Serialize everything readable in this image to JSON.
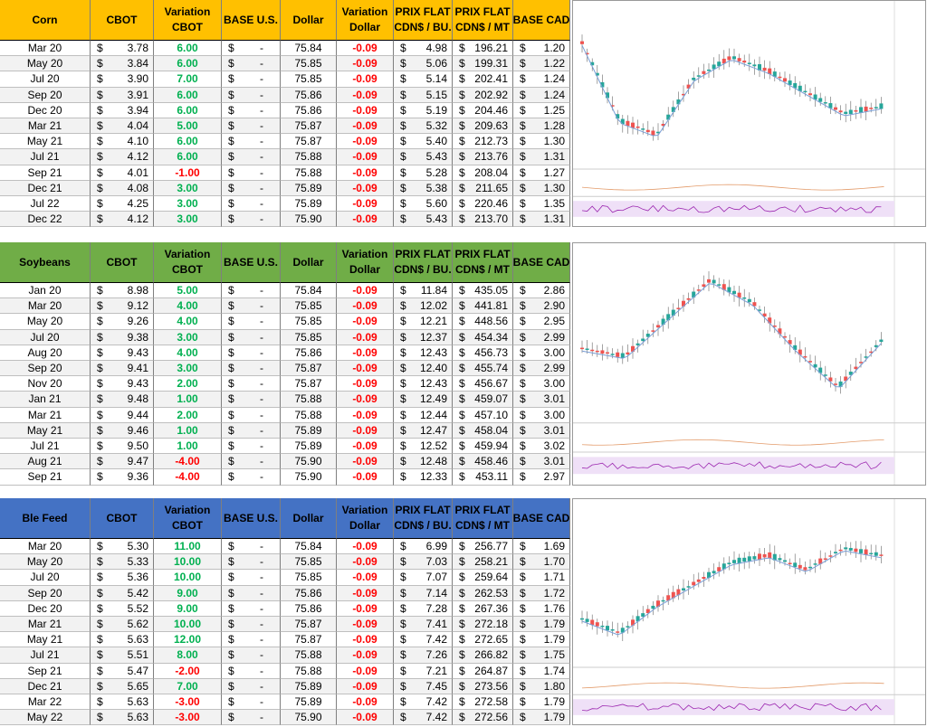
{
  "currency": "$",
  "tables": [
    {
      "header_color": "#ffc000",
      "headers": [
        [
          "Corn"
        ],
        [
          "CBOT"
        ],
        [
          "Variation",
          "CBOT"
        ],
        [
          "BASE U.S."
        ],
        [
          "Dollar"
        ],
        [
          "Variation",
          "Dollar"
        ],
        [
          "PRIX FLAT",
          "CDN$ / BU."
        ],
        [
          "PRIX FLAT",
          "CDN$ / MT"
        ],
        [
          "BASE CAD"
        ]
      ],
      "rows": [
        [
          "Mar 20",
          "3.78",
          "6.00",
          "-",
          "75.84",
          "-0.09",
          "4.98",
          "196.21",
          "1.20"
        ],
        [
          "May 20",
          "3.84",
          "6.00",
          "-",
          "75.85",
          "-0.09",
          "5.06",
          "199.31",
          "1.22"
        ],
        [
          "Jul 20",
          "3.90",
          "7.00",
          "-",
          "75.85",
          "-0.09",
          "5.14",
          "202.41",
          "1.24"
        ],
        [
          "Sep 20",
          "3.91",
          "6.00",
          "-",
          "75.86",
          "-0.09",
          "5.15",
          "202.92",
          "1.24"
        ],
        [
          "Dec 20",
          "3.94",
          "6.00",
          "-",
          "75.86",
          "-0.09",
          "5.19",
          "204.46",
          "1.25"
        ],
        [
          "Mar 21",
          "4.04",
          "5.00",
          "-",
          "75.87",
          "-0.09",
          "5.32",
          "209.63",
          "1.28"
        ],
        [
          "May 21",
          "4.10",
          "6.00",
          "-",
          "75.87",
          "-0.09",
          "5.40",
          "212.73",
          "1.30"
        ],
        [
          "Jul 21",
          "4.12",
          "6.00",
          "-",
          "75.88",
          "-0.09",
          "5.43",
          "213.76",
          "1.31"
        ],
        [
          "Sep 21",
          "4.01",
          "-1.00",
          "-",
          "75.88",
          "-0.09",
          "5.28",
          "208.04",
          "1.27"
        ],
        [
          "Dec 21",
          "4.08",
          "3.00",
          "-",
          "75.89",
          "-0.09",
          "5.38",
          "211.65",
          "1.30"
        ],
        [
          "Jul 22",
          "4.25",
          "3.00",
          "-",
          "75.89",
          "-0.09",
          "5.60",
          "220.46",
          "1.35"
        ],
        [
          "Dec 22",
          "4.12",
          "3.00",
          "-",
          "75.90",
          "-0.09",
          "5.43",
          "213.70",
          "1.31"
        ]
      ]
    },
    {
      "header_color": "#70ad47",
      "headers": [
        [
          "Soybeans"
        ],
        [
          "CBOT"
        ],
        [
          "Variation",
          "CBOT"
        ],
        [
          "BASE U.S."
        ],
        [
          "Dollar"
        ],
        [
          "Variation",
          "Dollar"
        ],
        [
          "PRIX FLAT",
          "CDN$ / BU."
        ],
        [
          "PRIX FLAT",
          "CDN$ / MT"
        ],
        [
          "BASE CAD"
        ]
      ],
      "rows": [
        [
          "Jan 20",
          "8.98",
          "5.00",
          "-",
          "75.84",
          "-0.09",
          "11.84",
          "435.05",
          "2.86"
        ],
        [
          "Mar 20",
          "9.12",
          "4.00",
          "-",
          "75.85",
          "-0.09",
          "12.02",
          "441.81",
          "2.90"
        ],
        [
          "May 20",
          "9.26",
          "4.00",
          "-",
          "75.85",
          "-0.09",
          "12.21",
          "448.56",
          "2.95"
        ],
        [
          "Jul 20",
          "9.38",
          "3.00",
          "-",
          "75.85",
          "-0.09",
          "12.37",
          "454.34",
          "2.99"
        ],
        [
          "Aug 20",
          "9.43",
          "4.00",
          "-",
          "75.86",
          "-0.09",
          "12.43",
          "456.73",
          "3.00"
        ],
        [
          "Sep 20",
          "9.41",
          "3.00",
          "-",
          "75.87",
          "-0.09",
          "12.40",
          "455.74",
          "2.99"
        ],
        [
          "Nov 20",
          "9.43",
          "2.00",
          "-",
          "75.87",
          "-0.09",
          "12.43",
          "456.67",
          "3.00"
        ],
        [
          "Jan 21",
          "9.48",
          "1.00",
          "-",
          "75.88",
          "-0.09",
          "12.49",
          "459.07",
          "3.01"
        ],
        [
          "Mar 21",
          "9.44",
          "2.00",
          "-",
          "75.88",
          "-0.09",
          "12.44",
          "457.10",
          "3.00"
        ],
        [
          "May 21",
          "9.46",
          "1.00",
          "-",
          "75.89",
          "-0.09",
          "12.47",
          "458.04",
          "3.01"
        ],
        [
          "Jul 21",
          "9.50",
          "1.00",
          "-",
          "75.89",
          "-0.09",
          "12.52",
          "459.94",
          "3.02"
        ],
        [
          "Aug 21",
          "9.47",
          "-4.00",
          "-",
          "75.90",
          "-0.09",
          "12.48",
          "458.46",
          "3.01"
        ],
        [
          "Sep 21",
          "9.36",
          "-4.00",
          "-",
          "75.90",
          "-0.09",
          "12.33",
          "453.11",
          "2.97"
        ]
      ]
    },
    {
      "header_color": "#4472c4",
      "headers": [
        [
          "Ble Feed"
        ],
        [
          "CBOT"
        ],
        [
          "Variation",
          "CBOT"
        ],
        [
          "BASE U.S."
        ],
        [
          "Dollar"
        ],
        [
          "Variation",
          "Dollar"
        ],
        [
          "PRIX FLAT",
          "CDN$ / BU."
        ],
        [
          "PRIX FLAT",
          "CDN$ / MT"
        ],
        [
          "BASE CAD"
        ]
      ],
      "rows": [
        [
          "Mar 20",
          "5.30",
          "11.00",
          "-",
          "75.84",
          "-0.09",
          "6.99",
          "256.77",
          "1.69"
        ],
        [
          "May 20",
          "5.33",
          "10.00",
          "-",
          "75.85",
          "-0.09",
          "7.03",
          "258.21",
          "1.70"
        ],
        [
          "Jul 20",
          "5.36",
          "10.00",
          "-",
          "75.85",
          "-0.09",
          "7.07",
          "259.64",
          "1.71"
        ],
        [
          "Sep 20",
          "5.42",
          "9.00",
          "-",
          "75.86",
          "-0.09",
          "7.14",
          "262.53",
          "1.72"
        ],
        [
          "Dec 20",
          "5.52",
          "9.00",
          "-",
          "75.86",
          "-0.09",
          "7.28",
          "267.36",
          "1.76"
        ],
        [
          "Mar 21",
          "5.62",
          "10.00",
          "-",
          "75.87",
          "-0.09",
          "7.41",
          "272.18",
          "1.79"
        ],
        [
          "May 21",
          "5.63",
          "12.00",
          "-",
          "75.87",
          "-0.09",
          "7.42",
          "272.65",
          "1.79"
        ],
        [
          "Jul 21",
          "5.51",
          "8.00",
          "-",
          "75.88",
          "-0.09",
          "7.26",
          "266.82",
          "1.75"
        ],
        [
          "Sep 21",
          "5.47",
          "-2.00",
          "-",
          "75.88",
          "-0.09",
          "7.21",
          "264.87",
          "1.74"
        ],
        [
          "Dec 21",
          "5.65",
          "7.00",
          "-",
          "75.89",
          "-0.09",
          "7.45",
          "273.56",
          "1.80"
        ],
        [
          "Mar 22",
          "5.63",
          "-3.00",
          "-",
          "75.89",
          "-0.09",
          "7.42",
          "272.58",
          "1.79"
        ],
        [
          "May 22",
          "5.63",
          "-3.00",
          "-",
          "75.90",
          "-0.09",
          "7.42",
          "272.56",
          "1.79"
        ]
      ]
    }
  ]
}
